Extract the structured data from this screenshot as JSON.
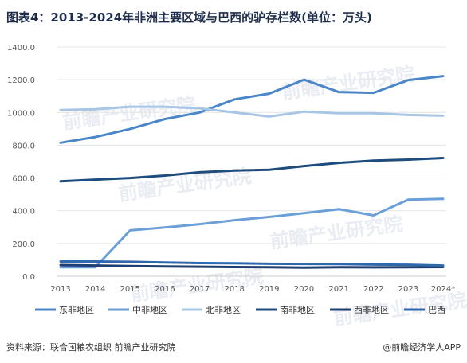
{
  "chart_data": {
    "type": "line",
    "title": "图表4：2013-2024年非洲主要区域与巴西的驴存栏数(单位：万头)",
    "xlabel": "",
    "ylabel": "",
    "ylim": [
      0,
      1400
    ],
    "yticks": [
      "0.0",
      "200.0",
      "400.0",
      "600.0",
      "800.0",
      "1000.0",
      "1200.0",
      "1400.0"
    ],
    "grid": true,
    "legend_position": "bottom",
    "x": [
      "2013",
      "2014",
      "2015",
      "2016",
      "2017",
      "2018",
      "2019",
      "2020",
      "2021",
      "2022",
      "2023",
      "2024*"
    ],
    "series": [
      {
        "name": "东非地区",
        "color": "#4a86c8",
        "values": [
          815,
          850,
          900,
          960,
          1000,
          1080,
          1115,
          1200,
          1125,
          1120,
          1198,
          1222
        ]
      },
      {
        "name": "中非地区",
        "color": "#6a9fd8",
        "values": [
          55,
          55,
          280,
          298,
          318,
          342,
          362,
          385,
          410,
          372,
          468,
          473
        ]
      },
      {
        "name": "北非地区",
        "color": "#a7c6e6",
        "values": [
          1015,
          1020,
          1035,
          1035,
          1025,
          1000,
          975,
          1005,
          995,
          995,
          985,
          980
        ]
      },
      {
        "name": "南非地区",
        "color": "#1d4c7e",
        "values": [
          580,
          590,
          600,
          615,
          635,
          645,
          650,
          673,
          692,
          706,
          712,
          722
        ]
      },
      {
        "name": "西非地区",
        "color": "#1f3f72",
        "values": [
          68,
          65,
          62,
          60,
          58,
          56,
          55,
          52,
          55,
          54,
          55,
          56
        ]
      },
      {
        "name": "巴西",
        "color": "#2f69ad",
        "values": [
          90,
          90,
          88,
          84,
          80,
          79,
          76,
          75,
          74,
          71,
          70,
          65
        ]
      }
    ]
  },
  "footer": {
    "source": "资料来源：联合国粮农组织 前瞻产业研究院",
    "brand": "@前瞻经济学人APP"
  },
  "watermark_text": "前瞻产业研究院"
}
